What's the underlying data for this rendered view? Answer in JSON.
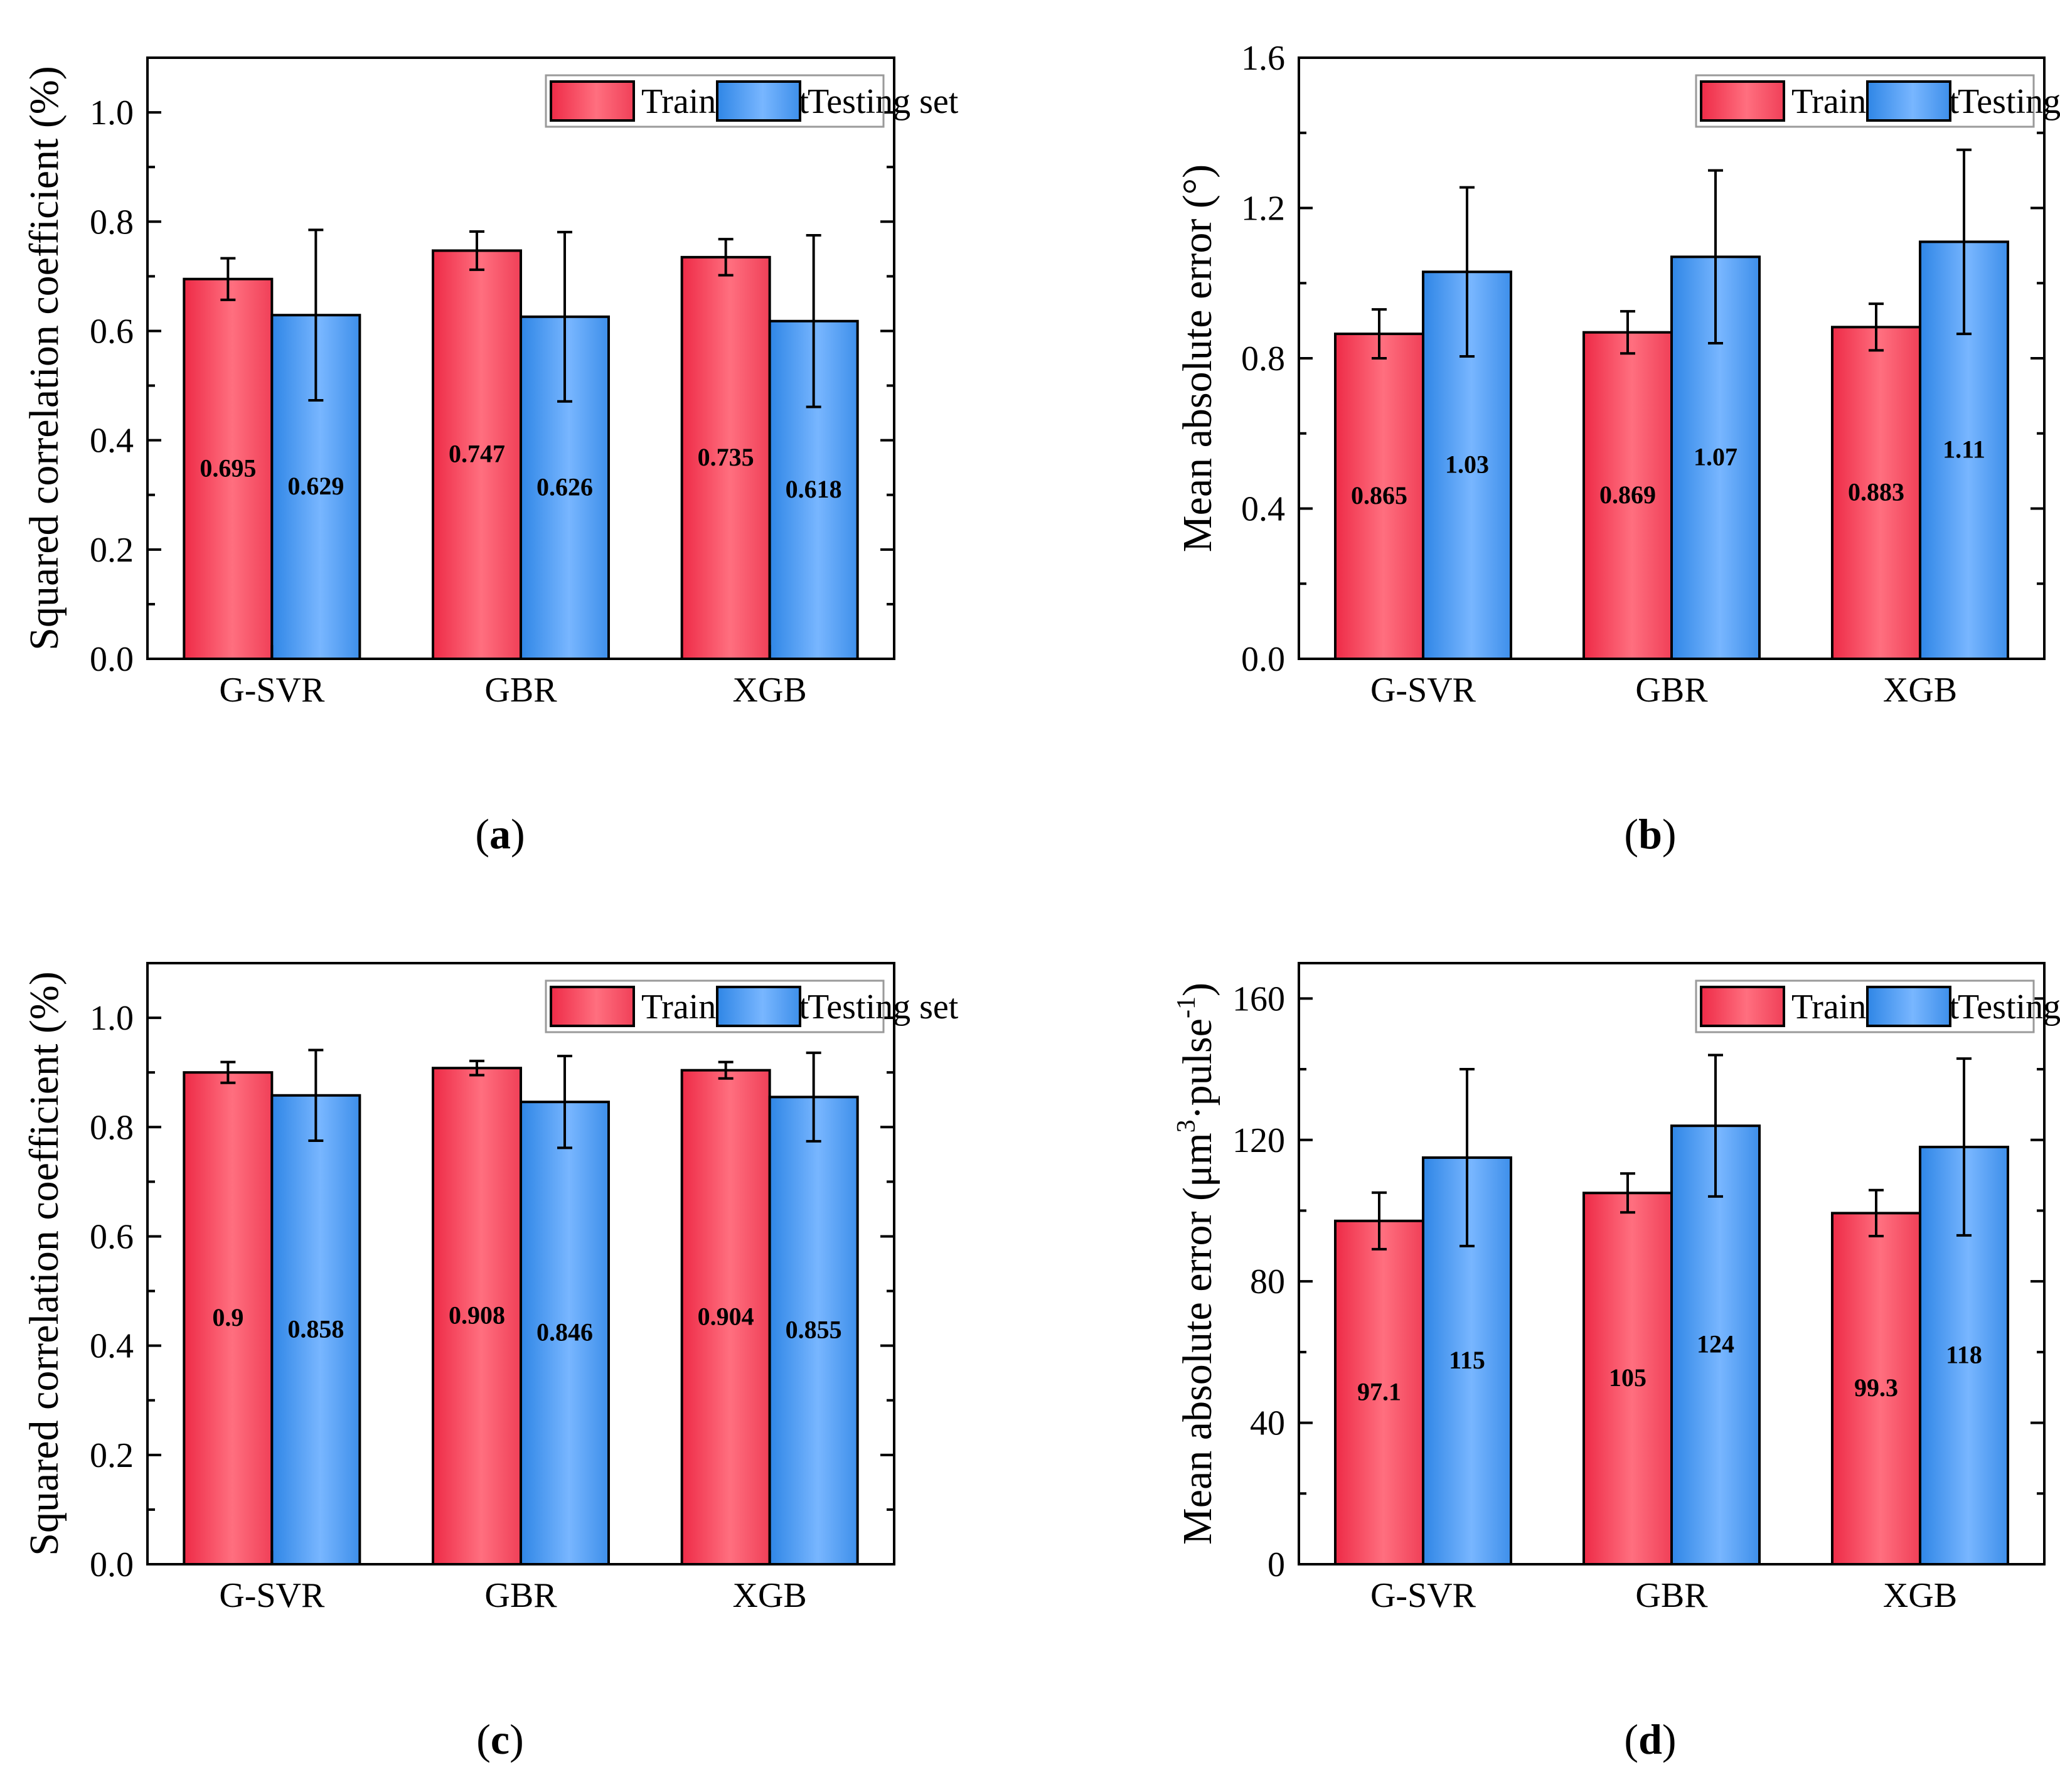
{
  "colors": {
    "training": "#ee2b47",
    "training_light": "#ff6f7f",
    "testing": "#2f86e6",
    "testing_light": "#78b6ff"
  },
  "chart_data": [
    {
      "panel": "(a)",
      "panel_letter": "a",
      "type": "bar",
      "categories": [
        "G-SVR",
        "GBR",
        "XGB"
      ],
      "ylabel": "Squared correlation coefficient (%)",
      "ylabel_sup": "",
      "ylabel_tail": "",
      "ylim": [
        0.0,
        1.1
      ],
      "yticks": [
        0.0,
        0.2,
        0.4,
        0.6,
        0.8,
        1.0
      ],
      "ytick_labels": [
        "0.0",
        "0.2",
        "0.4",
        "0.6",
        "0.8",
        "1.0"
      ],
      "legend": [
        "Training set",
        "Testing set"
      ],
      "legend_position": "top-right",
      "series": [
        {
          "name": "Training set",
          "values": [
            0.695,
            0.747,
            0.735
          ],
          "errors": [
            0.038,
            0.035,
            0.033
          ],
          "labels": [
            "0.695",
            "0.747",
            "0.735"
          ]
        },
        {
          "name": "Testing set",
          "values": [
            0.629,
            0.626,
            0.618
          ],
          "errors": [
            0.156,
            0.155,
            0.157
          ],
          "labels": [
            "0.629",
            "0.626",
            "0.618"
          ]
        }
      ]
    },
    {
      "panel": "(b)",
      "panel_letter": "b",
      "type": "bar",
      "categories": [
        "G-SVR",
        "GBR",
        "XGB"
      ],
      "ylabel": "Mean absolute error (°)",
      "ylabel_sup": "",
      "ylabel_tail": "",
      "ylim": [
        0.0,
        1.6
      ],
      "yticks": [
        0.0,
        0.4,
        0.8,
        1.2,
        1.6
      ],
      "ytick_labels": [
        "0.0",
        "0.4",
        "0.8",
        "1.2",
        "1.6"
      ],
      "legend": [
        "Training set",
        "Testing set"
      ],
      "legend_position": "top-right",
      "series": [
        {
          "name": "Training set",
          "values": [
            0.865,
            0.869,
            0.883
          ],
          "errors": [
            0.065,
            0.056,
            0.062
          ],
          "labels": [
            "0.865",
            "0.869",
            "0.883"
          ]
        },
        {
          "name": "Testing set",
          "values": [
            1.03,
            1.07,
            1.11
          ],
          "errors": [
            0.225,
            0.23,
            0.245
          ],
          "labels": [
            "1.03",
            "1.07",
            "1.11"
          ]
        }
      ]
    },
    {
      "panel": "(c)",
      "panel_letter": "c",
      "type": "bar",
      "categories": [
        "G-SVR",
        "GBR",
        "XGB"
      ],
      "ylabel": "Squared correlation coefficient (%)",
      "ylabel_sup": "",
      "ylabel_tail": "",
      "ylim": [
        0.0,
        1.1
      ],
      "yticks": [
        0.0,
        0.2,
        0.4,
        0.6,
        0.8,
        1.0
      ],
      "ytick_labels": [
        "0.0",
        "0.2",
        "0.4",
        "0.6",
        "0.8",
        "1.0"
      ],
      "legend": [
        "Training set",
        "Testing set"
      ],
      "legend_position": "top-right",
      "series": [
        {
          "name": "Training set",
          "values": [
            0.9,
            0.908,
            0.904
          ],
          "errors": [
            0.019,
            0.013,
            0.015
          ],
          "labels": [
            "0.9",
            "0.908",
            "0.904"
          ]
        },
        {
          "name": "Testing set",
          "values": [
            0.858,
            0.846,
            0.855
          ],
          "errors": [
            0.083,
            0.084,
            0.081
          ],
          "labels": [
            "0.858",
            "0.846",
            "0.855"
          ]
        }
      ]
    },
    {
      "panel": "(d)",
      "panel_letter": "d",
      "type": "bar",
      "categories": [
        "G-SVR",
        "GBR",
        "XGB"
      ],
      "ylabel": "Mean absolute error (μm",
      "ylabel_sup": "3",
      "ylabel_mid": "·pulse",
      "ylabel_sup2": "-1",
      "ylabel_tail": ")",
      "ylim": [
        0,
        170
      ],
      "yticks": [
        0,
        40,
        80,
        120,
        160
      ],
      "ytick_labels": [
        "0",
        "40",
        "80",
        "120",
        "160"
      ],
      "legend": [
        "Training set",
        "Testing set"
      ],
      "legend_position": "top-right",
      "series": [
        {
          "name": "Training set",
          "values": [
            97.1,
            105,
            99.3
          ],
          "errors": [
            8,
            5.5,
            6.5
          ],
          "labels": [
            "97.1",
            "105",
            "99.3"
          ]
        },
        {
          "name": "Testing set",
          "values": [
            115,
            124,
            118
          ],
          "errors": [
            25,
            20,
            25
          ],
          "labels": [
            "115",
            "124",
            "118"
          ]
        }
      ]
    }
  ]
}
